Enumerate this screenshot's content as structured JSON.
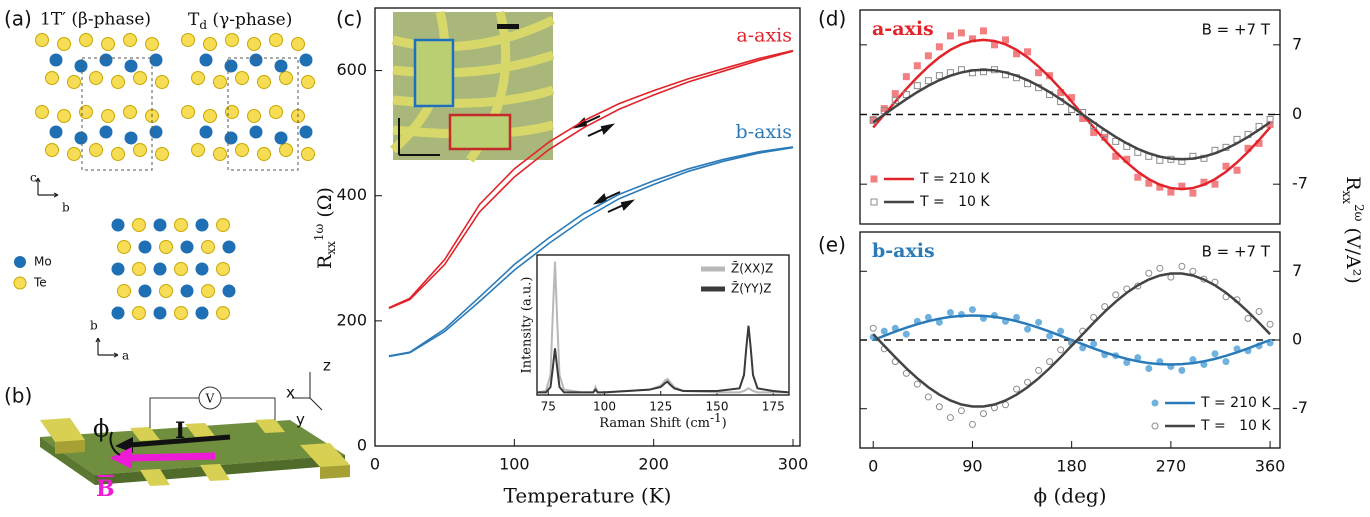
{
  "panels": {
    "a": {
      "label": "(a)",
      "phase1": "1T′ (β-phase)",
      "phase2": {
        "symbol": "T",
        "subscript": "d",
        "name": " (γ-phase)"
      },
      "axes_top": [
        "c",
        "b"
      ],
      "legend": [
        "Mo",
        "Te"
      ],
      "axes_bottom": [
        "b",
        "a"
      ]
    },
    "b": {
      "label": "(b)",
      "voltage": "V",
      "current": "I",
      "angle": "ϕ",
      "field": "B",
      "axes": [
        "z",
        "x",
        "y"
      ]
    },
    "c": {
      "label": "(c)"
    },
    "d": {
      "label": "(d)"
    },
    "e": {
      "label": "(e)"
    }
  },
  "chart_data": [
    {
      "type": "line",
      "xlabel": "Temperature (K)",
      "ylabel": {
        "symbol": "R",
        "sub": "xx",
        "sup": "1ω",
        "unit": " (Ω)"
      },
      "x": [
        10,
        25,
        50,
        75,
        100,
        125,
        150,
        175,
        200,
        225,
        250,
        275,
        300
      ],
      "xlim": [
        0,
        305
      ],
      "xticks": [
        0,
        100,
        200,
        300
      ],
      "ylim": [
        0,
        700
      ],
      "yticks": [
        0,
        200,
        400,
        600
      ],
      "series": [
        {
          "name": "a-axis",
          "color": "#e2232a",
          "sweeps": [
            [
              221,
              236,
              298,
              386,
              443,
              486,
              520,
              547,
              568,
              587,
              603,
              619,
              632
            ],
            [
              220,
              234,
              290,
              374,
              430,
              474,
              509,
              538,
              561,
              582,
              599,
              616,
              631
            ]
          ]
        },
        {
          "name": "b-axis",
          "color": "#2b7bb9",
          "sweeps": [
            [
              144,
              150,
              187,
              238,
              290,
              333,
              372,
              402,
              424,
              443,
              458,
              470,
              478
            ],
            [
              143,
              149,
              183,
              231,
              281,
              324,
              363,
              395,
              418,
              439,
              455,
              468,
              477
            ]
          ]
        }
      ]
    },
    {
      "type": "line",
      "xlabel": {
        "text": "Raman Shift (cm",
        "sup": "-1",
        "close": ")"
      },
      "ylabel": "Intensity (a.u.)",
      "x": [
        70,
        74,
        76,
        77,
        78,
        79,
        80,
        82,
        90,
        95,
        96,
        97,
        100,
        110,
        120,
        125,
        127,
        128,
        129,
        131,
        135,
        150,
        160,
        162,
        163,
        164,
        165,
        166,
        168,
        175,
        182
      ],
      "xlim": [
        70,
        182
      ],
      "xticks": [
        75,
        100,
        125,
        150,
        175
      ],
      "ylim": [
        0,
        1.05
      ],
      "series": [
        {
          "name": "Z̄(XX)Z",
          "color": "#b8b8b8",
          "values": [
            0.02,
            0.03,
            0.15,
            0.6,
            1.0,
            0.55,
            0.15,
            0.04,
            0.02,
            0.02,
            0.06,
            0.02,
            0.02,
            0.03,
            0.04,
            0.07,
            0.11,
            0.12,
            0.1,
            0.06,
            0.03,
            0.02,
            0.02,
            0.03,
            0.04,
            0.05,
            0.04,
            0.03,
            0.02,
            0.02,
            0.02
          ]
        },
        {
          "name": "Z̄(YY)Z",
          "color": "#3a3a3a",
          "values": [
            0.02,
            0.02,
            0.06,
            0.2,
            0.35,
            0.2,
            0.06,
            0.02,
            0.02,
            0.02,
            0.04,
            0.02,
            0.02,
            0.03,
            0.04,
            0.06,
            0.09,
            0.1,
            0.08,
            0.05,
            0.03,
            0.03,
            0.05,
            0.15,
            0.35,
            0.52,
            0.35,
            0.15,
            0.05,
            0.03,
            0.02
          ]
        }
      ]
    },
    {
      "type": "scatter",
      "annotation": "a-axis",
      "annotation_color": "#e2232a",
      "field": "B = +7 T",
      "legend": "lower left",
      "zero_line": true,
      "ylabel": {
        "symbol": "R",
        "sub": "xx",
        "sup": "2ω",
        "unit": " (V/A²)"
      },
      "x": [
        0,
        10,
        20,
        30,
        40,
        50,
        60,
        70,
        80,
        90,
        100,
        110,
        120,
        130,
        140,
        150,
        160,
        170,
        180,
        190,
        200,
        210,
        220,
        230,
        240,
        250,
        260,
        270,
        280,
        290,
        300,
        310,
        320,
        330,
        340,
        350,
        360
      ],
      "xlim": [
        -12,
        369
      ],
      "ylim": [
        -11,
        10.5
      ],
      "yticks": [
        7,
        0,
        -7
      ],
      "series": [
        {
          "name": "T = 210 K",
          "color": "#e2232a",
          "marker": "square",
          "marker_color": "#f27f82",
          "filled": true,
          "values": [
            -0.5,
            0.6,
            2.1,
            3.8,
            4.9,
            5.9,
            6.8,
            7.9,
            8.2,
            7.6,
            8.4,
            7.0,
            7.5,
            6.1,
            6.3,
            4.2,
            3.9,
            2.2,
            1.7,
            -0.4,
            -1.8,
            -2.3,
            -4.2,
            -4.5,
            -6.3,
            -6.9,
            -7.3,
            -7.8,
            -7.2,
            -7.9,
            -6.8,
            -7.0,
            -5.2,
            -5.6,
            -3.4,
            -2.9,
            -1.0
          ],
          "fit": [
            -1.3,
            0,
            1.3,
            2.57,
            3.75,
            4.82,
            5.75,
            6.5,
            7.05,
            7.39,
            7.5,
            7.39,
            7.05,
            6.5,
            5.75,
            4.82,
            3.75,
            2.57,
            1.3,
            0,
            -1.3,
            -2.57,
            -3.75,
            -4.82,
            -5.75,
            -6.5,
            -7.05,
            -7.39,
            -7.5,
            -7.39,
            -7.05,
            -6.5,
            -5.75,
            -4.82,
            -3.75,
            -2.57,
            -1.3
          ]
        },
        {
          "name": "T =   10 K",
          "color": "#444444",
          "marker": "square",
          "marker_color": "#8c8c8c",
          "filled": false,
          "values": [
            -0.6,
            0.4,
            1.4,
            2.0,
            2.9,
            3.4,
            3.9,
            4.2,
            4.5,
            4.2,
            4.3,
            4.5,
            4.0,
            3.7,
            3.1,
            2.7,
            2.0,
            1.3,
            0.5,
            0.2,
            -1.1,
            -1.9,
            -2.7,
            -3.2,
            -3.8,
            -4.2,
            -4.6,
            -4.5,
            -4.7,
            -4.2,
            -4.4,
            -3.6,
            -3.3,
            -2.5,
            -2.0,
            -1.2,
            -0.5
          ],
          "fit": [
            -0.78,
            0,
            0.78,
            1.54,
            2.25,
            2.89,
            3.45,
            3.9,
            4.23,
            4.43,
            4.5,
            4.43,
            4.23,
            3.9,
            3.45,
            2.89,
            2.25,
            1.54,
            0.78,
            0,
            -0.78,
            -1.54,
            -2.25,
            -2.89,
            -3.45,
            -3.9,
            -4.23,
            -4.43,
            -4.5,
            -4.43,
            -4.23,
            -3.9,
            -3.45,
            -2.89,
            -2.25,
            -1.54,
            -0.78
          ]
        }
      ]
    },
    {
      "type": "scatter",
      "annotation": "b-axis",
      "annotation_color": "#2b7bb9",
      "field": "B = +7 T",
      "legend": "lower right",
      "zero_line": true,
      "xlabel": "ϕ (deg)",
      "x": [
        0,
        10,
        20,
        30,
        40,
        50,
        60,
        70,
        80,
        90,
        100,
        110,
        120,
        130,
        140,
        150,
        160,
        170,
        180,
        190,
        200,
        210,
        220,
        230,
        240,
        250,
        260,
        270,
        280,
        290,
        300,
        310,
        320,
        330,
        340,
        350,
        360
      ],
      "xlim": [
        -12,
        369
      ],
      "xticks": [
        0,
        90,
        180,
        270,
        360
      ],
      "ylim": [
        -11,
        11
      ],
      "yticks": [
        7,
        0,
        -7
      ],
      "series": [
        {
          "name": "T = 210 K",
          "color": "#2b7bb9",
          "marker": "circle",
          "marker_color": "#6fb2e0",
          "filled": true,
          "values": [
            0.3,
            0.9,
            1.2,
            0.6,
            1.9,
            2.3,
            1.8,
            2.8,
            2.6,
            3.1,
            2.2,
            2.5,
            1.9,
            2.3,
            1.1,
            1.8,
            0.4,
            0.9,
            -0.2,
            -0.8,
            -0.4,
            -1.5,
            -1.6,
            -2.3,
            -1.8,
            -2.9,
            -2.2,
            -2.7,
            -3.1,
            -2.0,
            -2.5,
            -1.4,
            -2.2,
            -0.9,
            -1.1,
            -0.6,
            -0.3
          ],
          "fit": [
            0,
            0.43,
            0.86,
            1.25,
            1.61,
            1.92,
            2.17,
            2.35,
            2.46,
            2.5,
            2.46,
            2.35,
            2.17,
            1.92,
            1.61,
            1.25,
            0.86,
            0.43,
            0,
            -0.43,
            -0.86,
            -1.25,
            -1.61,
            -1.92,
            -2.17,
            -2.35,
            -2.46,
            -2.5,
            -2.46,
            -2.35,
            -2.17,
            -1.92,
            -1.61,
            -1.25,
            -0.86,
            -0.43,
            0
          ]
        },
        {
          "name": "T =   10 K",
          "color": "#444444",
          "marker": "circle",
          "marker_color": "#8c8c8c",
          "filled": false,
          "values": [
            1.2,
            -0.9,
            -2.2,
            -3.4,
            -4.5,
            -5.8,
            -6.8,
            -7.9,
            -7.2,
            -8.6,
            -7.5,
            -6.9,
            -6.6,
            -5.0,
            -4.3,
            -3.1,
            -2.2,
            -1.0,
            -0.3,
            0.9,
            2.3,
            3.4,
            4.6,
            5.2,
            5.5,
            6.8,
            7.3,
            6.4,
            7.5,
            7.0,
            6.2,
            5.9,
            4.4,
            4.1,
            2.2,
            2.9,
            1.6
          ],
          "fit": [
            0.59,
            -0.59,
            -1.76,
            -2.88,
            -3.9,
            -4.81,
            -5.57,
            -6.16,
            -6.57,
            -6.77,
            -6.77,
            -6.57,
            -6.16,
            -5.57,
            -4.81,
            -3.9,
            -2.88,
            -1.76,
            -0.59,
            0.59,
            1.76,
            2.88,
            3.9,
            4.81,
            5.57,
            6.16,
            6.57,
            6.77,
            6.77,
            6.57,
            6.16,
            5.57,
            4.81,
            3.9,
            2.88,
            1.76,
            0.59
          ]
        }
      ]
    }
  ]
}
